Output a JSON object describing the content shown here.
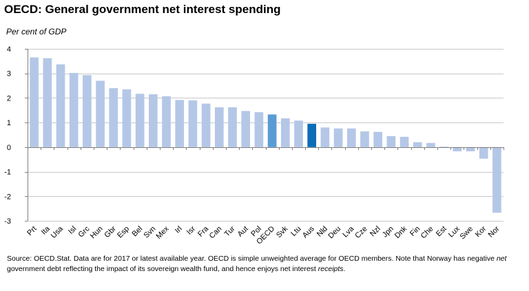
{
  "title": "OECD: General government net interest spending",
  "subtitle": "Per cent of GDP",
  "footnote": {
    "part1": "Source: OECD.Stat.  Data are for 2017 or latest available year.  OECD is simple unweighted average for OECD members.  Note that Norway has negative ",
    "net": "net",
    "part2": " government debt reflecting the impact of its sovereign wealth fund, and hence enjoys net interest ",
    "receipts": "receipts",
    "part3": "."
  },
  "chart_data": {
    "type": "bar",
    "title": "OECD: General government net interest spending",
    "ylabel": "Per cent of GDP",
    "xlabel": "",
    "ylim": [
      -3,
      4
    ],
    "yticks": [
      4,
      3,
      2,
      1,
      0,
      -1,
      -2,
      -3
    ],
    "grid": true,
    "categories": [
      "Prt",
      "Ita",
      "Usa",
      "Isl",
      "Grc",
      "Hun",
      "Gbr",
      "Esp",
      "Bel",
      "Svn",
      "Mex",
      "Irl",
      "Isr",
      "Fra",
      "Can",
      "Tur",
      "Aut",
      "Pol",
      "OECD",
      "Svk",
      "Ltu",
      "Aus",
      "Nld",
      "Deu",
      "Lva",
      "Cze",
      "Nzl",
      "Jpn",
      "Dnk",
      "Fin",
      "Che",
      "Est",
      "Lux",
      "Swe",
      "Kor",
      "Nor"
    ],
    "values": [
      3.65,
      3.62,
      3.37,
      3.02,
      2.93,
      2.7,
      2.4,
      2.35,
      2.17,
      2.15,
      2.07,
      1.92,
      1.9,
      1.77,
      1.62,
      1.62,
      1.47,
      1.42,
      1.33,
      1.17,
      1.08,
      0.95,
      0.8,
      0.76,
      0.76,
      0.64,
      0.62,
      0.45,
      0.42,
      0.2,
      0.17,
      0.02,
      -0.17,
      -0.17,
      -0.47,
      -2.67
    ],
    "highlight": {
      "OECD": "#5b9bd5",
      "Aus": "#0b6cb8"
    },
    "bar_color": "#b4c7e7"
  }
}
